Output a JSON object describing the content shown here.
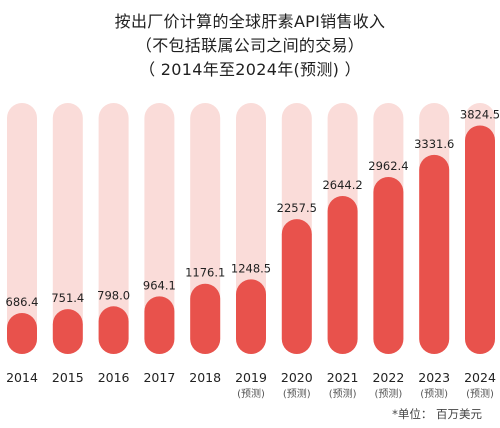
{
  "colors": {
    "bar": "#e8524c",
    "bar_track": "#fadcd9",
    "text": "#222222"
  },
  "chart_data": {
    "type": "bar",
    "title_lines": [
      "按出厂价计算的全球肝素API销售收入",
      "（不包括联属公司之间的交易）",
      "（ 2014年至2024年(预测) ）"
    ],
    "categories": [
      "2014",
      "2015",
      "2016",
      "2017",
      "2018",
      "2019",
      "2020",
      "2021",
      "2022",
      "2023",
      "2024"
    ],
    "forecast_flags": [
      false,
      false,
      false,
      false,
      false,
      true,
      true,
      true,
      true,
      true,
      true
    ],
    "forecast_label": "(预测)",
    "values": [
      686.4,
      751.4,
      798.0,
      964.1,
      1176.1,
      1248.5,
      2257.5,
      2644.2,
      2962.4,
      3331.6,
      3824.5
    ],
    "value_labels": [
      "686.4",
      "751.4",
      "798.0",
      "964.1",
      "1176.1",
      "1248.5",
      "2257.5",
      "2644.2",
      "2962.4",
      "3331.6",
      "3824.5"
    ],
    "ylim": [
      0,
      4200
    ],
    "grid": false,
    "legend": "none",
    "unit_note": "*单位：  百万美元"
  }
}
